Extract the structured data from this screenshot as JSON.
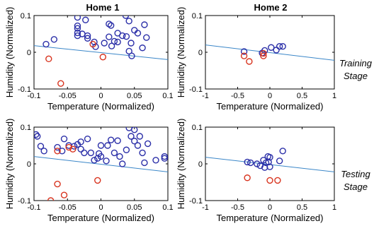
{
  "figure": {
    "column_titles": [
      "Home 1",
      "Home 2"
    ],
    "row_labels": [
      [
        "Training",
        "Stage"
      ],
      [
        "Testing",
        "Stage"
      ]
    ]
  },
  "colors": {
    "cluster": "#2b2fa8",
    "outlier": "#d8341f",
    "boundary": "#3a86c8",
    "axes": "#000000"
  },
  "chart_data": [
    {
      "type": "scatter",
      "title": "Home 1",
      "stage": "Training Stage",
      "xlabel": "Temperature (Normalized)",
      "ylabel": "Humidity (Normalized)",
      "xlim": [
        -0.1,
        0.1
      ],
      "ylim": [
        -0.1,
        0.1
      ],
      "xticks": [
        -0.1,
        -0.05,
        0,
        0.05,
        0.1
      ],
      "xtick_labels": [
        "-0.1",
        "-0.05",
        "0",
        "0.05",
        "0.1"
      ],
      "yticks": [
        -0.1,
        0,
        0.1
      ],
      "ytick_labels": [
        "-0.1",
        "0",
        "0.1"
      ],
      "grid": false,
      "boundary_line": [
        [
          -0.1,
          0.018
        ],
        [
          0.1,
          -0.02
        ]
      ],
      "series": [
        {
          "marker": "circle",
          "color": "cluster",
          "points": [
            [
              -0.082,
              0.022
            ],
            [
              -0.07,
              0.035
            ],
            [
              -0.035,
              0.095
            ],
            [
              -0.035,
              0.072
            ],
            [
              -0.035,
              0.065
            ],
            [
              -0.035,
              0.053
            ],
            [
              -0.035,
              0.045
            ],
            [
              -0.028,
              0.05
            ],
            [
              -0.023,
              0.088
            ],
            [
              -0.02,
              0.045
            ],
            [
              -0.02,
              0.038
            ],
            [
              -0.008,
              0.015
            ],
            [
              0.005,
              0.025
            ],
            [
              0.012,
              0.042
            ],
            [
              0.012,
              0.077
            ],
            [
              0.015,
              0.073
            ],
            [
              0.016,
              0.017
            ],
            [
              0.025,
              0.052
            ],
            [
              0.025,
              0.028
            ],
            [
              0.032,
              0.045
            ],
            [
              0.037,
              0.1
            ],
            [
              0.038,
              0.043
            ],
            [
              0.042,
              0.085
            ],
            [
              0.042,
              0.003
            ],
            [
              0.045,
              0.025
            ],
            [
              0.046,
              -0.01
            ],
            [
              0.05,
              0.06
            ],
            [
              0.055,
              0.052
            ],
            [
              0.062,
              0.012
            ],
            [
              0.065,
              0.075
            ],
            [
              0.068,
              0.04
            ],
            [
              -0.01,
              0.028
            ],
            [
              0.02,
              0.03
            ]
          ]
        },
        {
          "marker": "circle",
          "color": "outlier",
          "points": [
            [
              -0.078,
              -0.018
            ],
            [
              -0.06,
              -0.085
            ],
            [
              -0.012,
              0.022
            ],
            [
              0.003,
              -0.013
            ]
          ]
        }
      ]
    },
    {
      "type": "scatter",
      "title": "Home 2",
      "stage": "Training Stage",
      "xlabel": "Temperature (Normalized)",
      "ylabel": "Humidity (Normalized)",
      "xlim": [
        -1,
        1
      ],
      "ylim": [
        -0.1,
        0.1
      ],
      "xticks": [
        -1,
        -0.5,
        0,
        0.5,
        1
      ],
      "xtick_labels": [
        "-1",
        "-0.5",
        "0",
        "0.5",
        "1"
      ],
      "yticks": [
        -0.1,
        0,
        0.1
      ],
      "ytick_labels": [
        "-0.1",
        "0",
        "0.1"
      ],
      "grid": false,
      "boundary_line": [
        [
          -1,
          0.02
        ],
        [
          1,
          -0.022
        ]
      ],
      "series": [
        {
          "marker": "circle",
          "color": "cluster",
          "points": [
            [
              -0.4,
              0.002
            ],
            [
              -0.12,
              -0.002
            ],
            [
              -0.08,
              0.005
            ],
            [
              0.02,
              0.013
            ],
            [
              0.1,
              0.006
            ],
            [
              0.15,
              0.016
            ],
            [
              0.2,
              0.016
            ]
          ]
        },
        {
          "marker": "circle",
          "color": "outlier",
          "points": [
            [
              -0.4,
              -0.01
            ],
            [
              -0.32,
              -0.025
            ],
            [
              -0.1,
              -0.003
            ],
            [
              -0.1,
              -0.01
            ]
          ]
        }
      ]
    },
    {
      "type": "scatter",
      "title": "Home 1",
      "stage": "Testing Stage",
      "xlabel": "Temperature (Normalized)",
      "ylabel": "Humidity (Normalized)",
      "xlim": [
        -0.1,
        0.1
      ],
      "ylim": [
        -0.1,
        0.1
      ],
      "xticks": [
        -0.1,
        -0.05,
        0,
        0.05,
        0.1
      ],
      "xtick_labels": [
        "-0.1",
        "-0.05",
        "0",
        "0.05",
        "0.1"
      ],
      "yticks": [
        -0.1,
        0,
        0.1
      ],
      "ytick_labels": [
        "-0.1",
        "0",
        "0.1"
      ],
      "grid": false,
      "boundary_line": [
        [
          -0.1,
          0.02
        ],
        [
          0.1,
          -0.022
        ]
      ],
      "series": [
        {
          "marker": "circle",
          "color": "cluster",
          "points": [
            [
              -0.097,
              0.08
            ],
            [
              -0.095,
              0.075
            ],
            [
              -0.09,
              0.048
            ],
            [
              -0.085,
              0.035
            ],
            [
              -0.065,
              0.045
            ],
            [
              -0.058,
              0.035
            ],
            [
              -0.055,
              0.068
            ],
            [
              -0.048,
              0.05
            ],
            [
              -0.04,
              0.048
            ],
            [
              -0.03,
              0.06
            ],
            [
              -0.035,
              0.053
            ],
            [
              -0.03,
              0.04
            ],
            [
              -0.025,
              0.03
            ],
            [
              -0.02,
              0.068
            ],
            [
              -0.015,
              0.03
            ],
            [
              -0.01,
              0.01
            ],
            [
              -0.005,
              0.015
            ],
            [
              0.0,
              0.05
            ],
            [
              0.0,
              0.02
            ],
            [
              0.01,
              0.05
            ],
            [
              0.015,
              0.065
            ],
            [
              0.02,
              0.03
            ],
            [
              0.025,
              0.063
            ],
            [
              0.028,
              0.02
            ],
            [
              0.032,
              0.0
            ],
            [
              0.038,
              0.038
            ],
            [
              0.042,
              0.098
            ],
            [
              0.045,
              0.075
            ],
            [
              0.05,
              0.093
            ],
            [
              0.05,
              0.062
            ],
            [
              0.055,
              0.05
            ],
            [
              0.058,
              0.075
            ],
            [
              0.062,
              0.03
            ],
            [
              0.065,
              0.003
            ],
            [
              0.07,
              0.055
            ],
            [
              0.082,
              0.01
            ],
            [
              0.095,
              0.015
            ],
            [
              0.095,
              0.02
            ],
            [
              0.008,
              0.008
            ],
            [
              -0.003,
              0.028
            ]
          ]
        },
        {
          "marker": "circle",
          "color": "outlier",
          "points": [
            [
              -0.075,
              -0.1
            ],
            [
              -0.065,
              -0.055
            ],
            [
              -0.055,
              -0.085
            ],
            [
              -0.048,
              0.045
            ],
            [
              -0.065,
              0.035
            ],
            [
              -0.042,
              0.04
            ],
            [
              -0.005,
              -0.045
            ]
          ]
        }
      ]
    },
    {
      "type": "scatter",
      "title": "Home 2",
      "stage": "Testing Stage",
      "xlabel": "Temperature (Normalized)",
      "ylabel": "Humidity (Normalized)",
      "xlim": [
        -1,
        1
      ],
      "ylim": [
        -0.1,
        0.1
      ],
      "xticks": [
        -1,
        -0.5,
        0,
        0.5,
        1
      ],
      "xtick_labels": [
        "-1",
        "-0.5",
        "0",
        "0.5",
        "1"
      ],
      "yticks": [
        -0.1,
        0,
        0.1
      ],
      "ytick_labels": [
        "-0.1",
        "0",
        "0.1"
      ],
      "grid": false,
      "boundary_line": [
        [
          -1,
          0.018
        ],
        [
          1,
          -0.022
        ]
      ],
      "series": [
        {
          "marker": "circle",
          "color": "cluster",
          "points": [
            [
              -0.35,
              0.005
            ],
            [
              -0.3,
              0.003
            ],
            [
              -0.2,
              0.0
            ],
            [
              -0.15,
              -0.005
            ],
            [
              -0.1,
              0.01
            ],
            [
              -0.08,
              -0.01
            ],
            [
              -0.03,
              0.02
            ],
            [
              -0.02,
              0.005
            ],
            [
              0.0,
              0.018
            ],
            [
              0.0,
              -0.008
            ],
            [
              0.15,
              0.008
            ],
            [
              0.2,
              0.035
            ],
            [
              -0.06,
              0.003
            ]
          ]
        },
        {
          "marker": "circle",
          "color": "outlier",
          "points": [
            [
              -0.35,
              -0.038
            ],
            [
              0.0,
              -0.045
            ],
            [
              0.12,
              -0.045
            ]
          ]
        }
      ]
    }
  ]
}
